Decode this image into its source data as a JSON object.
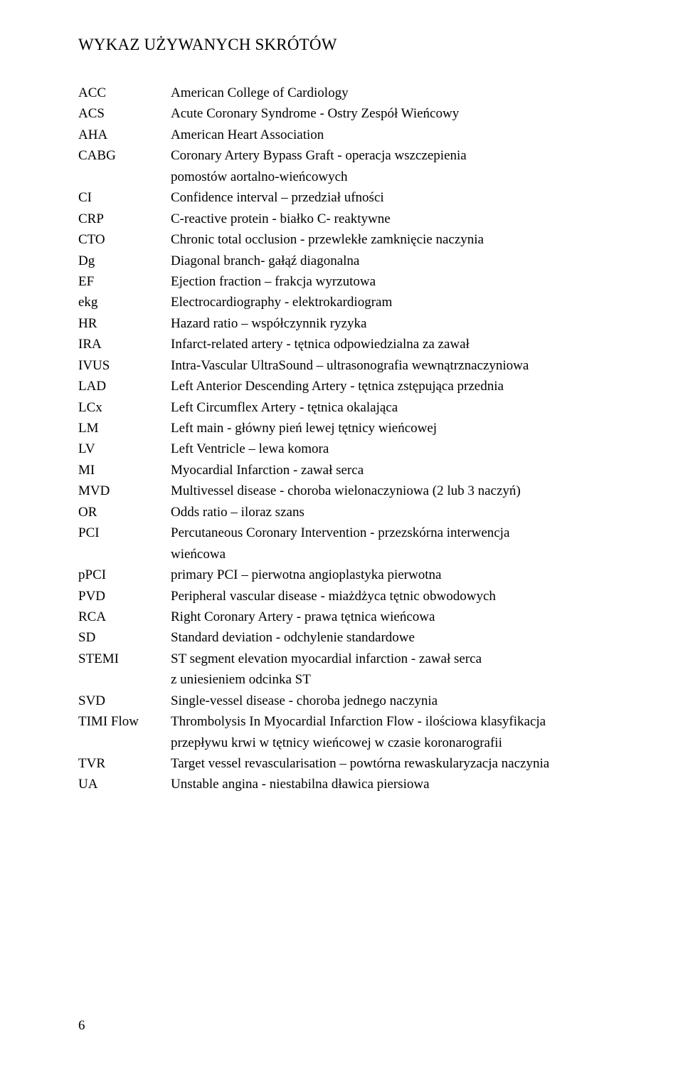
{
  "title": "WYKAZ UŻYWANYCH SKRÓTÓW",
  "entries": [
    {
      "abbr": "ACC",
      "def": "American College of Cardiology"
    },
    {
      "abbr": "ACS",
      "def": "Acute Coronary Syndrome - Ostry Zespół Wieńcowy"
    },
    {
      "abbr": "AHA",
      "def": "American Heart Association"
    },
    {
      "abbr": "CABG",
      "def": "Coronary Artery Bypass Graft - operacja wszczepienia",
      "cont": "pomostów aortalno-wieńcowych"
    },
    {
      "abbr": "CI",
      "def": "Confidence interval – przedział ufności"
    },
    {
      "abbr": "CRP",
      "def": "C-reactive protein - białko C- reaktywne"
    },
    {
      "abbr": "CTO",
      "def": "Chronic total occlusion - przewlekłe zamknięcie naczynia"
    },
    {
      "abbr": "Dg",
      "def": "Diagonal branch- gałąź diagonalna"
    },
    {
      "abbr": "EF",
      "def": "Ejection fraction – frakcja wyrzutowa"
    },
    {
      "abbr": "ekg",
      "def": "Electrocardiography - elektrokardiogram"
    },
    {
      "abbr": "HR",
      "def": "Hazard ratio – współczynnik ryzyka"
    },
    {
      "abbr": "IRA",
      "def": "Infarct-related artery - tętnica odpowiedzialna za zawał"
    },
    {
      "abbr": "IVUS",
      "def": "Intra-Vascular UltraSound – ultrasonografia wewnątrznaczyniowa"
    },
    {
      "abbr": "LAD",
      "def": "Left Anterior Descending Artery - tętnica zstępująca przednia"
    },
    {
      "abbr": "LCx",
      "def": "Left Circumflex Artery - tętnica okalająca"
    },
    {
      "abbr": "LM",
      "def": "Left main - główny pień lewej tętnicy wieńcowej"
    },
    {
      "abbr": "LV",
      "def": "Left Ventricle – lewa komora"
    },
    {
      "abbr": "MI",
      "def": "Myocardial Infarction - zawał serca"
    },
    {
      "abbr": "MVD",
      "def": "Multivessel disease - choroba wielonaczyniowa (2 lub 3 naczyń)"
    },
    {
      "abbr": "OR",
      "def": "Odds ratio – iloraz szans"
    },
    {
      "abbr": "PCI",
      "def": "Percutaneous Coronary Intervention - przezskórna interwencja",
      "cont": "wieńcowa"
    },
    {
      "abbr": "pPCI",
      "def": "primary PCI – pierwotna angioplastyka pierwotna"
    },
    {
      "abbr": "PVD",
      "def": "Peripheral vascular disease - miażdżyca tętnic obwodowych"
    },
    {
      "abbr": "RCA",
      "def": "Right Coronary Artery - prawa tętnica wieńcowa"
    },
    {
      "abbr": "SD",
      "def": "Standard deviation - odchylenie standardowe"
    },
    {
      "abbr": "STEMI",
      "def": "ST segment elevation myocardial infarction - zawał serca",
      "cont": "z uniesieniem odcinka ST"
    },
    {
      "abbr": "SVD",
      "def": "Single-vessel disease - choroba jednego naczynia"
    },
    {
      "abbr": "TIMI Flow",
      "def": "Thrombolysis In Myocardial Infarction Flow - ilościowa klasyfikacja",
      "cont": "przepływu krwi w tętnicy wieńcowej w czasie koronarografii"
    },
    {
      "abbr": "TVR",
      "def": "Target vessel revascularisation – powtórna rewaskularyzacja naczynia"
    },
    {
      "abbr": "UA",
      "def": "Unstable angina - niestabilna dławica piersiowa"
    }
  ],
  "pageNumber": "6",
  "colors": {
    "background": "#ffffff",
    "text": "#000000"
  },
  "typography": {
    "fontFamily": "Times New Roman",
    "titleSize": 23,
    "bodySize": 19,
    "lineHeight": 1.55
  }
}
